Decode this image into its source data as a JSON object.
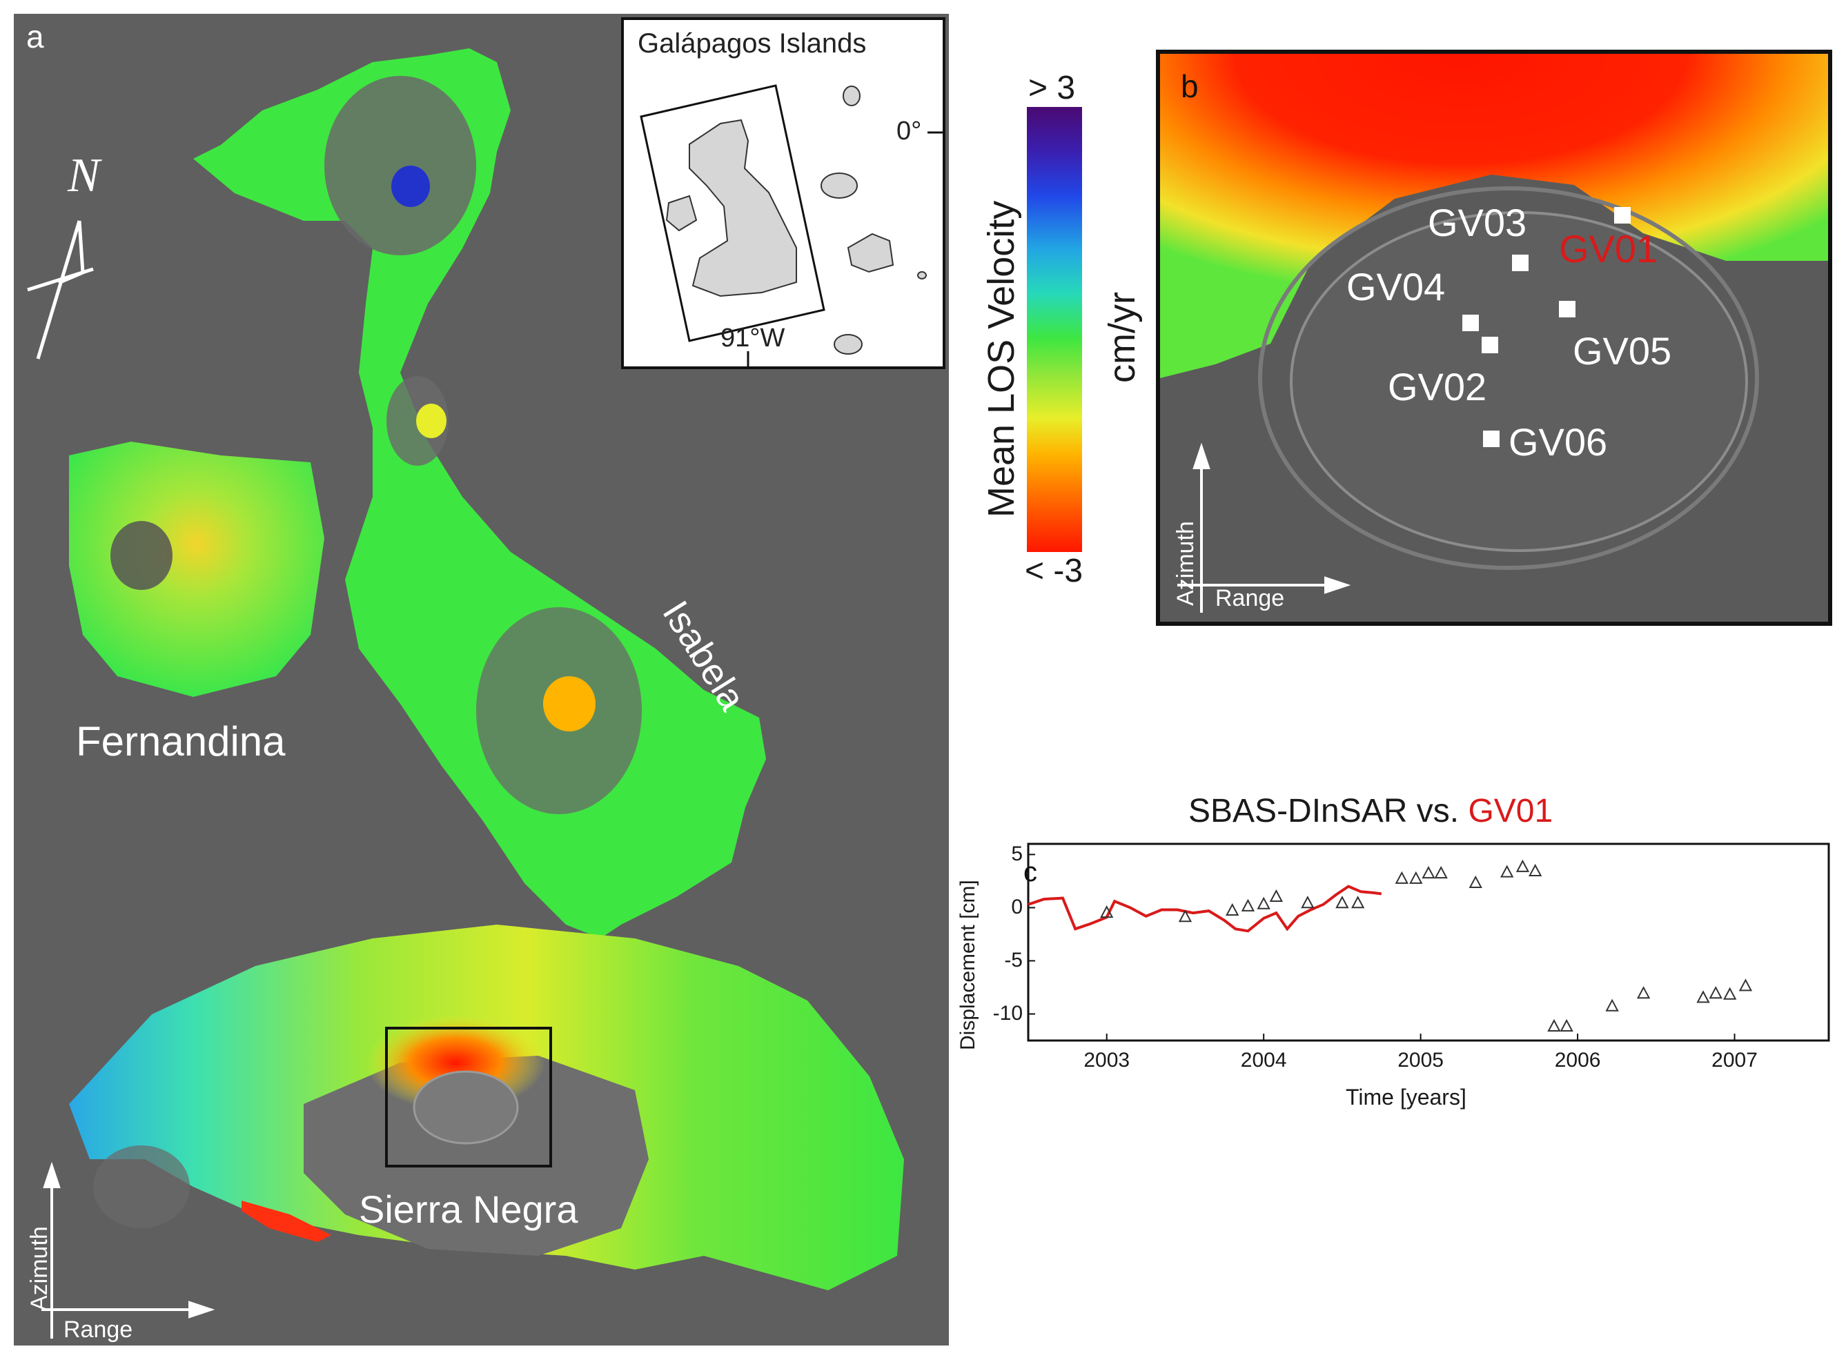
{
  "panel_a": {
    "label": "a",
    "north_label": "N",
    "islands": {
      "fernandina": "Fernandina",
      "isabela": "Isabela",
      "sierra_negra": "Sierra Negra"
    },
    "azimuth": "Azimuth",
    "range": "Range"
  },
  "inset": {
    "title": "Galápagos Islands",
    "lat_label": "0°",
    "lon_label": "91°W"
  },
  "colorbar": {
    "top_label": "> 3",
    "bottom_label": "< -3",
    "title": "Mean LOS Velocity",
    "unit": "cm/yr",
    "colors": [
      "#4a0a73",
      "#2147e8",
      "#22a6e3",
      "#3ee641",
      "#e8ee2a",
      "#ff6a00",
      "#ff1600"
    ]
  },
  "panel_b": {
    "label": "b",
    "stations": [
      "GV03",
      "GV01",
      "GV04",
      "GV05",
      "GV02",
      "GV06"
    ],
    "highlight_station": "GV01",
    "highlight_color": "#d91a1a",
    "azimuth": "Azimuth",
    "range": "Range"
  },
  "panel_c": {
    "label": "c",
    "title_main": "SBAS-DInSAR vs.",
    "title_accent": "GV01",
    "ylabel": "Displacement [cm]",
    "xlabel": "Time [years]"
  },
  "chart_data": {
    "type": "line",
    "title": "SBAS-DInSAR vs. GV01",
    "xlabel": "Time [years]",
    "ylabel": "Displacement [cm]",
    "xlim": [
      2002.5,
      2007.6
    ],
    "ylim": [
      -12.5,
      6
    ],
    "xticks": [
      2003,
      2004,
      2005,
      2006,
      2007
    ],
    "yticks": [
      5,
      0,
      -5,
      -10
    ],
    "series": [
      {
        "kind": "line",
        "color": "#d91a1a",
        "x": [
          2002.5,
          2002.6,
          2002.72,
          2002.8,
          2002.9,
          2003.0,
          2003.05,
          2003.15,
          2003.25,
          2003.35,
          2003.45,
          2003.55,
          2003.65,
          2003.75,
          2003.82,
          2003.9,
          2004.0,
          2004.08,
          2004.15,
          2004.22,
          2004.3,
          2004.38,
          2004.46,
          2004.54,
          2004.62,
          2004.7,
          2004.75
        ],
        "y": [
          0.3,
          0.8,
          0.9,
          -2.0,
          -1.5,
          -0.9,
          0.6,
          0.0,
          -0.8,
          -0.2,
          -0.2,
          -0.5,
          -0.3,
          -1.2,
          -2.0,
          -2.2,
          -1.0,
          -0.5,
          -2.0,
          -0.8,
          -0.2,
          0.3,
          1.2,
          2.0,
          1.5,
          1.4,
          1.3
        ]
      },
      {
        "kind": "scatter",
        "marker": "triangle",
        "color": "#333333",
        "x": [
          2003.0,
          2003.5,
          2003.8,
          2003.9,
          2004.0,
          2004.08,
          2004.28,
          2004.5,
          2004.6,
          2004.88,
          2004.97,
          2005.05,
          2005.13,
          2005.35,
          2005.55,
          2005.65,
          2005.73,
          2005.85,
          2005.93,
          2006.22,
          2006.42,
          2006.8,
          2006.88,
          2006.97,
          2007.07
        ],
        "y": [
          -0.5,
          -0.9,
          -0.3,
          0.1,
          0.3,
          1.0,
          0.4,
          0.4,
          0.4,
          2.7,
          2.7,
          3.2,
          3.2,
          2.3,
          3.3,
          3.8,
          3.4,
          -11.2,
          -11.2,
          -9.3,
          -8.1,
          -8.5,
          -8.1,
          -8.2,
          -7.4
        ]
      }
    ]
  }
}
